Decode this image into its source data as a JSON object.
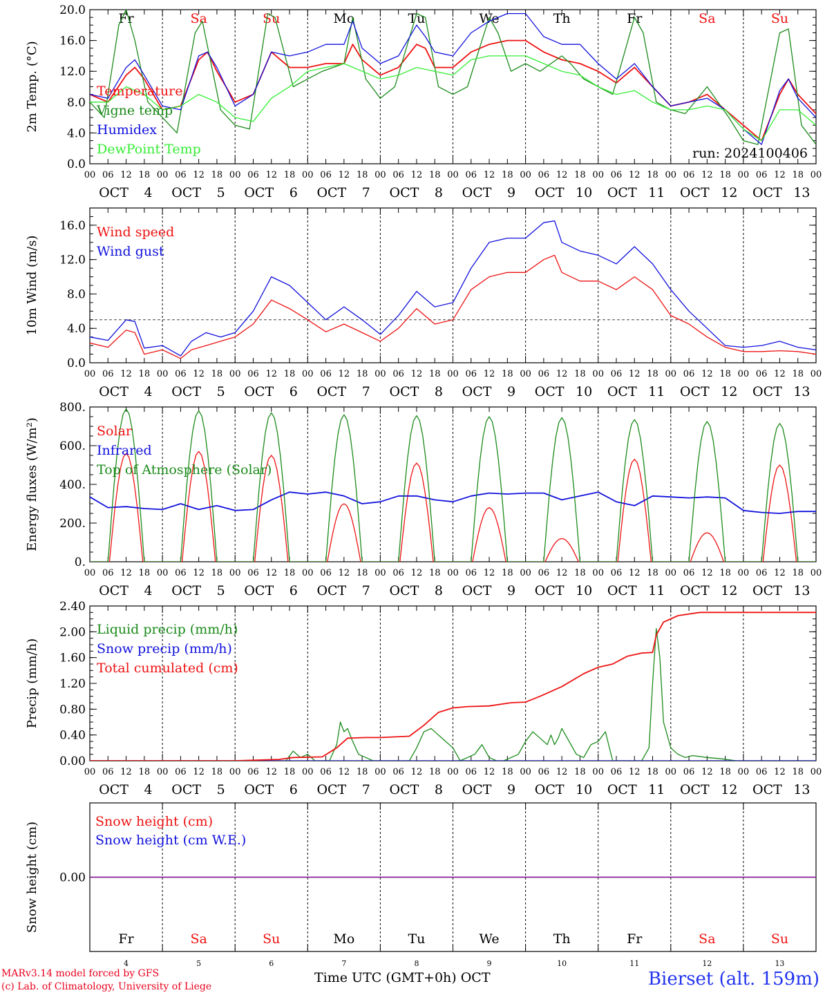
{
  "colors": {
    "red": "#ee1111",
    "green": "#1a8a1a",
    "blue": "#1010dd",
    "lightgreen": "#33ee33",
    "weekend": "#ee1111",
    "weekday": "#000000",
    "purple": "#882299"
  },
  "time_axis": {
    "hour_labels": [
      "00",
      "06",
      "12",
      "18"
    ],
    "month": "OCT",
    "days": [
      4,
      5,
      6,
      7,
      8,
      9,
      10,
      11,
      12,
      13
    ],
    "weekdays": [
      "Fr",
      "Sa",
      "Su",
      "Mo",
      "Tu",
      "We",
      "Th",
      "Fr",
      "Sa",
      "Su"
    ],
    "weekend_flags": [
      false,
      true,
      true,
      false,
      false,
      false,
      false,
      false,
      true,
      true
    ]
  },
  "footer": {
    "model_line": "MARv3.14 model forced by GFS",
    "lab_line": "(c) Lab. of Climatology, University of Liege",
    "axis_label": "Time UTC (GMT+0h) OCT",
    "station": "Bierset (alt. 159m)"
  },
  "chart_data": [
    {
      "type": "line",
      "ylabel": "2m Temp. (°C)",
      "ylim": [
        0,
        20
      ],
      "yticks": [
        "0.0",
        "4.0",
        "8.0",
        "12.0",
        "16.0",
        "20.0"
      ],
      "run_label": "run: 2024100406",
      "x_unit": "days since OCT 4 00 UTC",
      "series": [
        {
          "name": "Temperature",
          "color": "#ee1111",
          "x": [
            0,
            0.25,
            0.5,
            0.62,
            0.75,
            1,
            1.25,
            1.5,
            1.62,
            1.75,
            2,
            2.25,
            2.5,
            2.75,
            3,
            3.25,
            3.5,
            3.62,
            3.75,
            4,
            4.25,
            4.5,
            4.62,
            4.75,
            5,
            5.25,
            5.5,
            5.75,
            6,
            6.25,
            6.5,
            6.75,
            7,
            7.25,
            7.5,
            7.75,
            8,
            8.25,
            8.5,
            8.75,
            9,
            9.25,
            9.5,
            9.62,
            9.75,
            10
          ],
          "y": [
            9,
            8,
            11.5,
            12.5,
            11,
            7,
            7.5,
            13.5,
            14.5,
            12,
            8,
            9,
            14.5,
            12.5,
            12.5,
            13,
            13,
            15.5,
            13.5,
            11.5,
            12.5,
            15.5,
            15,
            12.5,
            12.5,
            14.5,
            15.5,
            16,
            16,
            14.5,
            13.5,
            13,
            12,
            10.5,
            12.5,
            10,
            7.5,
            8,
            9,
            7,
            5,
            3,
            9,
            11,
            9,
            6.5
          ]
        },
        {
          "name": "Vigne temp",
          "color": "#1a8a1a",
          "x": [
            0,
            0.2,
            0.4,
            0.5,
            0.62,
            0.8,
            1,
            1.2,
            1.45,
            1.55,
            1.8,
            2,
            2.2,
            2.45,
            2.55,
            2.8,
            3,
            3.2,
            3.5,
            3.62,
            3.8,
            4,
            4.2,
            4.5,
            4.62,
            4.8,
            5,
            5.2,
            5.5,
            5.62,
            5.8,
            6,
            6.2,
            6.5,
            6.62,
            6.8,
            7,
            7.2,
            7.5,
            7.62,
            7.8,
            8,
            8.2,
            8.5,
            8.8,
            9,
            9.2,
            9.5,
            9.62,
            9.8,
            10
          ],
          "y": [
            8,
            6,
            18,
            20,
            16,
            8,
            6,
            4,
            17,
            18.5,
            7,
            5,
            4.5,
            19.5,
            19,
            10,
            11,
            12,
            13,
            19,
            11,
            8.5,
            10,
            19.5,
            19,
            10,
            9,
            10,
            19,
            17,
            12,
            13,
            12,
            14,
            13,
            11,
            10,
            9,
            19,
            17,
            8,
            7,
            6.5,
            10,
            6,
            3,
            2.5,
            17,
            17.5,
            5,
            2.5
          ]
        },
        {
          "name": "Humidex",
          "color": "#1010dd",
          "x": [
            0,
            0.25,
            0.5,
            0.62,
            0.75,
            1,
            1.25,
            1.5,
            1.62,
            1.75,
            2,
            2.25,
            2.5,
            2.75,
            3,
            3.25,
            3.5,
            3.62,
            3.75,
            4,
            4.25,
            4.5,
            4.62,
            4.75,
            5,
            5.25,
            5.5,
            5.75,
            6,
            6.25,
            6.5,
            6.75,
            7,
            7.25,
            7.5,
            7.75,
            8,
            8.25,
            8.5,
            8.75,
            9,
            9.25,
            9.5,
            9.62,
            9.75,
            10
          ],
          "y": [
            9,
            8.5,
            12.5,
            13.5,
            11.5,
            7.5,
            7,
            14,
            14.5,
            12.5,
            7.5,
            9,
            14.5,
            14,
            14.5,
            15.5,
            15.5,
            18.5,
            15,
            13,
            14,
            18,
            16.5,
            14.5,
            14,
            17,
            18.5,
            19.5,
            19.5,
            16.5,
            15.5,
            15.5,
            13,
            11,
            13,
            10,
            7.5,
            8,
            8.5,
            7,
            4.5,
            2.5,
            9.5,
            11,
            8.5,
            6
          ]
        },
        {
          "name": "DewPoint Temp",
          "color": "#33ee33",
          "x": [
            0,
            0.25,
            0.5,
            0.75,
            1,
            1.25,
            1.5,
            1.75,
            2,
            2.25,
            2.5,
            2.75,
            3,
            3.25,
            3.5,
            3.75,
            4,
            4.25,
            4.5,
            4.75,
            5,
            5.25,
            5.5,
            5.75,
            6,
            6.25,
            6.5,
            6.75,
            7,
            7.25,
            7.5,
            7.75,
            8,
            8.25,
            8.5,
            8.75,
            9,
            9.25,
            9.5,
            9.75,
            10
          ],
          "y": [
            8,
            8,
            10,
            9,
            7,
            7.5,
            9,
            8,
            6,
            5.5,
            8.5,
            10,
            12,
            12.5,
            13,
            12,
            11,
            11.5,
            12.5,
            12,
            11.5,
            13.5,
            14,
            14,
            14,
            13,
            12,
            11.5,
            10,
            9,
            9.5,
            8,
            7,
            7,
            7.5,
            7,
            4.5,
            3,
            7,
            7,
            5
          ]
        }
      ]
    },
    {
      "type": "line",
      "ylabel": "10m Wind (m/s)",
      "ylim": [
        0,
        18
      ],
      "yticks": [
        "0.0",
        "4.0",
        "8.0",
        "12.0",
        "16.0"
      ],
      "reference_line": 5,
      "series": [
        {
          "name": "Wind speed",
          "color": "#ee1111",
          "x": [
            0,
            0.25,
            0.5,
            0.62,
            0.75,
            1,
            1.25,
            1.4,
            1.6,
            1.8,
            2,
            2.25,
            2.5,
            2.75,
            3,
            3.25,
            3.5,
            3.75,
            4,
            4.25,
            4.5,
            4.75,
            5,
            5.25,
            5.5,
            5.75,
            6,
            6.25,
            6.4,
            6.5,
            6.75,
            7,
            7.25,
            7.5,
            7.75,
            8,
            8.25,
            8.5,
            8.75,
            9,
            9.25,
            9.5,
            9.75,
            10
          ],
          "y": [
            2.3,
            1.8,
            3.8,
            3.5,
            1,
            1.5,
            0.5,
            1.5,
            2,
            2.5,
            3,
            4.5,
            7.3,
            6.3,
            5,
            3.6,
            4.5,
            3.5,
            2.5,
            4,
            6.3,
            4.5,
            5,
            8.5,
            10,
            10.5,
            10.5,
            12,
            12.5,
            10.5,
            9.5,
            9.5,
            8.5,
            10,
            8.5,
            5.5,
            4.5,
            3,
            1.8,
            1.3,
            1.3,
            1.4,
            1.3,
            1
          ]
        },
        {
          "name": "Wind gust",
          "color": "#1010dd",
          "x": [
            0,
            0.25,
            0.5,
            0.62,
            0.75,
            1,
            1.25,
            1.4,
            1.6,
            1.8,
            2,
            2.25,
            2.5,
            2.75,
            3,
            3.25,
            3.5,
            3.75,
            4,
            4.25,
            4.5,
            4.75,
            5,
            5.25,
            5.5,
            5.75,
            6,
            6.25,
            6.4,
            6.5,
            6.75,
            7,
            7.25,
            7.5,
            7.75,
            8,
            8.25,
            8.5,
            8.75,
            9,
            9.25,
            9.5,
            9.75,
            10
          ],
          "y": [
            3,
            2.6,
            5,
            4.8,
            1.7,
            2,
            0.8,
            2.5,
            3.5,
            3,
            3.5,
            6,
            10,
            9,
            7,
            5,
            6.5,
            5,
            3.3,
            5.5,
            8.3,
            6.5,
            7,
            11,
            14,
            14.5,
            14.5,
            16.3,
            16.5,
            14,
            13,
            12.5,
            11.5,
            13.5,
            11.5,
            8.5,
            6,
            4,
            2,
            1.8,
            2,
            2.5,
            1.8,
            1.5
          ]
        }
      ]
    },
    {
      "type": "line",
      "ylabel": "Energy fluxes (W/m²)",
      "ylim": [
        0,
        800
      ],
      "yticks": [
        "0.",
        "200.",
        "400.",
        "600.",
        "800."
      ],
      "series": [
        {
          "name": "Solar",
          "color": "#ee1111",
          "daily_peaks": [
            560,
            570,
            550,
            300,
            510,
            280,
            120,
            530,
            150,
            500
          ]
        },
        {
          "name": "Infrared",
          "color": "#1010dd",
          "x": [
            0,
            0.25,
            0.5,
            0.75,
            1,
            1.25,
            1.5,
            1.75,
            2,
            2.25,
            2.5,
            2.75,
            3,
            3.25,
            3.5,
            3.75,
            4,
            4.25,
            4.5,
            4.75,
            5,
            5.25,
            5.5,
            5.75,
            6,
            6.25,
            6.5,
            6.75,
            7,
            7.25,
            7.5,
            7.75,
            8,
            8.25,
            8.5,
            8.75,
            9,
            9.25,
            9.5,
            9.75,
            10
          ],
          "y": [
            335,
            280,
            285,
            275,
            270,
            300,
            270,
            290,
            265,
            270,
            320,
            360,
            350,
            360,
            340,
            300,
            310,
            340,
            340,
            320,
            310,
            340,
            355,
            350,
            355,
            355,
            320,
            340,
            360,
            310,
            290,
            340,
            335,
            330,
            335,
            330,
            265,
            255,
            250,
            260,
            260
          ]
        },
        {
          "name": "Top of Atmosphere (Solar)",
          "color": "#1a8a1a",
          "daily_peaks": [
            790,
            780,
            770,
            760,
            755,
            750,
            745,
            735,
            725,
            715
          ]
        }
      ]
    },
    {
      "type": "line",
      "ylabel": "Precip (mm/h)",
      "ylim": [
        0,
        2.4
      ],
      "yticks": [
        "0.00",
        "0.40",
        "0.80",
        "1.20",
        "1.60",
        "2.00",
        "2.40"
      ],
      "series": [
        {
          "name": "Liquid precip (mm/h)",
          "color": "#1a8a1a",
          "x": [
            0,
            2.7,
            2.8,
            2.9,
            3.0,
            3.1,
            3.3,
            3.4,
            3.45,
            3.5,
            3.55,
            3.6,
            3.7,
            3.8,
            3.9,
            4.4,
            4.5,
            4.6,
            4.7,
            4.8,
            4.9,
            5.0,
            5.1,
            5.3,
            5.4,
            5.5,
            5.6,
            5.7,
            5.9,
            6.0,
            6.1,
            6.2,
            6.3,
            6.35,
            6.4,
            6.45,
            6.5,
            6.6,
            6.7,
            6.8,
            6.9,
            7.0,
            7.1,
            7.2,
            7.3,
            7.4,
            7.6,
            7.7,
            7.75,
            7.8,
            7.85,
            7.9,
            8.0,
            8.1,
            8.2,
            8.3,
            8.5,
            8.7,
            8.9,
            10
          ],
          "y": [
            0,
            0,
            0.15,
            0.05,
            0.1,
            0,
            0,
            0.25,
            0.6,
            0.45,
            0.5,
            0.35,
            0.1,
            0.05,
            0,
            0,
            0.2,
            0.45,
            0.5,
            0.4,
            0.3,
            0.2,
            0,
            0.1,
            0.25,
            0.05,
            0,
            0,
            0.1,
            0.3,
            0.45,
            0.35,
            0.25,
            0.4,
            0.25,
            0.35,
            0.5,
            0.3,
            0.1,
            0.05,
            0.25,
            0.3,
            0.45,
            0,
            0,
            0,
            0,
            0.2,
            1.2,
            2.05,
            1.6,
            0.6,
            0.2,
            0.1,
            0.05,
            0.08,
            0.05,
            0.03,
            0,
            0
          ]
        },
        {
          "name": "Snow precip (mm/h)",
          "color": "#1010dd",
          "x": [
            0,
            10
          ],
          "y": [
            0,
            0
          ]
        },
        {
          "name": "Total cumulated (cm)",
          "color": "#ee1111",
          "x": [
            0,
            1,
            2,
            2.6,
            2.8,
            3.2,
            3.4,
            3.55,
            3.8,
            4,
            4.4,
            4.6,
            4.8,
            5,
            5.2,
            5.5,
            5.8,
            6,
            6.2,
            6.5,
            6.8,
            7,
            7.2,
            7.4,
            7.6,
            7.75,
            7.8,
            7.9,
            8.1,
            8.4,
            10
          ],
          "y": [
            0,
            0,
            0,
            0.02,
            0.05,
            0.06,
            0.2,
            0.35,
            0.36,
            0.36,
            0.38,
            0.55,
            0.75,
            0.82,
            0.84,
            0.85,
            0.9,
            0.91,
            1.0,
            1.15,
            1.35,
            1.45,
            1.5,
            1.62,
            1.67,
            1.68,
            1.95,
            2.15,
            2.25,
            2.3,
            2.3
          ]
        }
      ]
    },
    {
      "type": "line",
      "ylabel": "Snow height (cm)",
      "ylim": [
        -1,
        1
      ],
      "yticks": [
        "0.00"
      ],
      "series": [
        {
          "name": "Snow height (cm)",
          "color": "#ee1111",
          "x": [
            0,
            10
          ],
          "y": [
            0,
            0
          ]
        },
        {
          "name": "Snow height (cm W.E.)",
          "color": "#1010dd",
          "x": [
            0,
            10
          ],
          "y": [
            0,
            0
          ]
        }
      ]
    }
  ]
}
